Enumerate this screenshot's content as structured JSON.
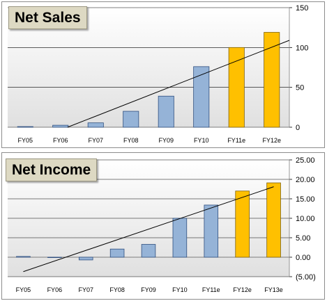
{
  "colors": {
    "bar_actual": "#95b3d7",
    "bar_actual_stroke": "#2f4f7f",
    "bar_estimate": "#ffc000",
    "bar_estimate_stroke": "#7f6000",
    "plot_background_top": "#ffffff",
    "plot_background_bottom": "#e0e0e0",
    "gridline": "#000000",
    "trendline": "#000000",
    "title_background": "#ddd9c3"
  },
  "chart_data": [
    {
      "type": "bar",
      "title": "Net Sales",
      "categories": [
        "FY05",
        "FY06",
        "FY07",
        "FY08",
        "FY09",
        "FY10",
        "FY11e",
        "FY12e"
      ],
      "values": [
        0.8,
        2.5,
        5.5,
        20,
        39,
        76,
        100,
        119
      ],
      "estimate_categories": [
        "FY11e",
        "FY12e"
      ],
      "ylim": [
        0,
        150
      ],
      "y_ticks": [
        0,
        50,
        100,
        150
      ],
      "y_tick_labels": [
        "0",
        "50",
        "100",
        "150"
      ],
      "y_axis_side": "right",
      "grid": true,
      "trendline": {
        "type": "linear",
        "points": [
          [
            1.2,
            0
          ],
          [
            7.5,
            109
          ]
        ]
      }
    },
    {
      "type": "bar",
      "title": "Net Income",
      "categories": [
        "FY05",
        "FY06",
        "FY07",
        "FY08",
        "FY09",
        "FY10",
        "FY11e",
        "FY12e",
        "FY13e"
      ],
      "values": [
        0.2,
        -0.1,
        -0.7,
        2.1,
        3.3,
        10.0,
        13.4,
        17.0,
        19.1
      ],
      "estimate_categories": [
        "FY12e",
        "FY13e"
      ],
      "ylim": [
        -5,
        25
      ],
      "y_ticks": [
        -5,
        0,
        5,
        10,
        15,
        20,
        25
      ],
      "y_tick_labels": [
        "(5.00)",
        "0.00",
        "5.00",
        "10.00",
        "15.00",
        "20.00",
        "25.00"
      ],
      "y_axis_side": "right",
      "grid": true,
      "trendline": {
        "type": "linear",
        "points": [
          [
            0,
            -3.7
          ],
          [
            8,
            18.1
          ]
        ]
      }
    }
  ]
}
